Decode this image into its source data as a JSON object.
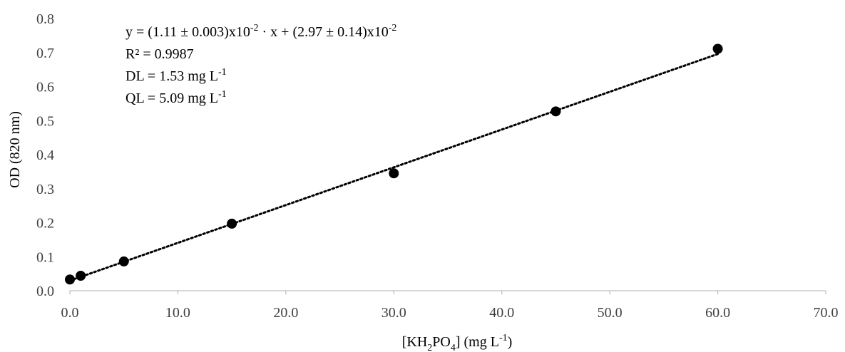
{
  "chart_data": {
    "type": "scatter",
    "title": "",
    "xlabel": {
      "prefix": "[KH",
      "sub1": "2",
      "mid": "PO",
      "sub2": "4",
      "suffix": "]  (mg L",
      "sup": "-1",
      "close": ")"
    },
    "ylabel": "OD (820 nm)",
    "xlim": [
      0,
      70
    ],
    "ylim": [
      0,
      0.8
    ],
    "x_ticks": [
      "0.0",
      "10.0",
      "20.0",
      "30.0",
      "40.0",
      "50.0",
      "60.0",
      "70.0"
    ],
    "y_ticks": [
      "0.0",
      "0.1",
      "0.2",
      "0.3",
      "0.4",
      "0.5",
      "0.6",
      "0.7",
      "0.8"
    ],
    "grid": false,
    "series": [
      {
        "marker_color": "#000000",
        "points": [
          {
            "x": 0,
            "y": 0.033
          },
          {
            "x": 1,
            "y": 0.044
          },
          {
            "x": 5,
            "y": 0.086
          },
          {
            "x": 15,
            "y": 0.197
          },
          {
            "x": 30,
            "y": 0.345
          },
          {
            "x": 45,
            "y": 0.527
          },
          {
            "x": 60,
            "y": 0.711
          }
        ]
      }
    ],
    "trendline": {
      "style": "dotted",
      "color": "#000000",
      "slope": 0.0111,
      "intercept": 0.0297,
      "x_range": [
        0,
        60
      ]
    },
    "annotations": {
      "equation": {
        "p1": "y = (1.11 ± 0.003)x10",
        "s1": "-2",
        "p2": " · x + (2.97 ± 0.14)x10",
        "s2": "-2"
      },
      "r2": "R² =  0.9987",
      "dl": {
        "text": "DL = 1.53 mg L",
        "sup": "-1"
      },
      "ql": {
        "text": "QL = 5.09 mg L",
        "sup": "-1"
      }
    }
  }
}
